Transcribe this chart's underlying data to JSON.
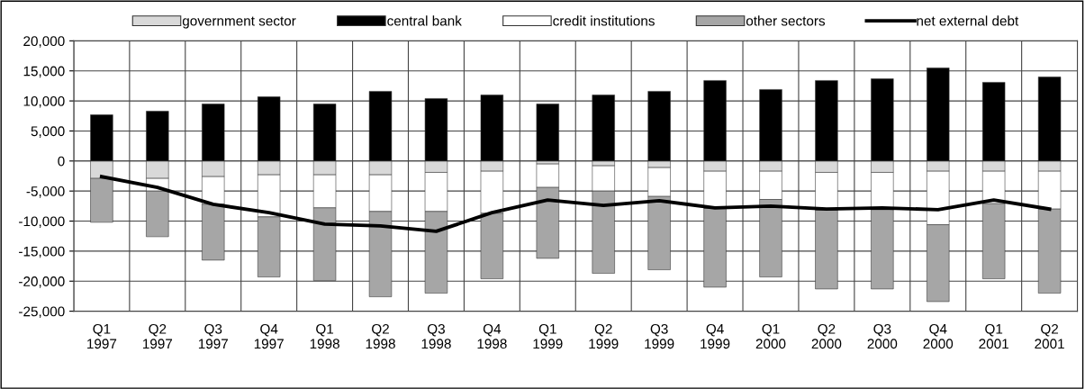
{
  "chart_data": {
    "type": "bar",
    "stacked": true,
    "categories": [
      "Q1\n1997",
      "Q2\n1997",
      "Q3\n1997",
      "Q4\n1997",
      "Q1\n1998",
      "Q2\n1998",
      "Q3\n1998",
      "Q4\n1998",
      "Q1\n1999",
      "Q2\n1999",
      "Q3\n1999",
      "Q4\n1999",
      "Q1\n2000",
      "Q2\n2000",
      "Q3\n2000",
      "Q4\n2000",
      "Q1\n2001",
      "Q2\n2001"
    ],
    "series": [
      {
        "name": "government sector",
        "color": "#d9d9d9",
        "values": [
          -2900,
          -2900,
          -2600,
          -2300,
          -2300,
          -2300,
          -1900,
          -1700,
          -500,
          -800,
          -1100,
          -1700,
          -1700,
          -1900,
          -1900,
          -1700,
          -1700,
          -1700
        ]
      },
      {
        "name": "central bank",
        "color": "#000000",
        "values": [
          7700,
          8300,
          9500,
          10700,
          9500,
          11600,
          10400,
          11000,
          9500,
          11000,
          11600,
          13400,
          11900,
          13400,
          13700,
          15500,
          13100,
          14000
        ]
      },
      {
        "name": "credit institutions",
        "color": "#ffffff",
        "values": [
          null,
          -2100,
          -4600,
          -7000,
          -5500,
          -6100,
          -6500,
          -7000,
          -3900,
          -4200,
          -4800,
          -6200,
          -4700,
          -6300,
          -6200,
          -8900,
          -5400,
          -6300
        ]
      },
      {
        "name": "other sectors",
        "color": "#a6a6a6",
        "values": [
          -7300,
          -7600,
          -9300,
          -10000,
          -12100,
          -14200,
          -13600,
          -10900,
          -11800,
          -13700,
          -12200,
          -13100,
          -12900,
          -13100,
          -13200,
          -12800,
          -12500,
          -14000
        ]
      },
      {
        "name": "net external debt",
        "type": "line",
        "color": "#000000",
        "values": [
          -2600,
          -4400,
          -7200,
          -8600,
          -10500,
          -10800,
          -11700,
          -8600,
          -6500,
          -7400,
          -6600,
          -7800,
          -7500,
          -8000,
          -7800,
          -8100,
          -6500,
          -8000
        ]
      }
    ],
    "ylim": [
      -25000,
      20000
    ],
    "yticks": [
      {
        "value": -25000,
        "label": "-25,000"
      },
      {
        "value": -20000,
        "label": "-20,000"
      },
      {
        "value": -15000,
        "label": "-15,000"
      },
      {
        "value": -10000,
        "label": "-10,000"
      },
      {
        "value": -5000,
        "label": "-5,000"
      },
      0,
      {
        "value": 5000,
        "label": "5,000"
      },
      {
        "value": 10000,
        "label": "10,000"
      },
      {
        "value": 15000,
        "label": "15,000"
      },
      {
        "value": 20000,
        "label": "20,000"
      }
    ],
    "grid": true,
    "legend": "top"
  }
}
